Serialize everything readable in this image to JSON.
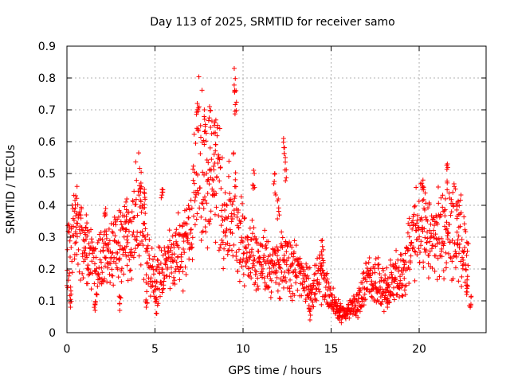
{
  "chart_data": {
    "type": "scatter",
    "title": "Day 113 of 2025, SRMTID for receiver samo",
    "xlabel": "GPS time / hours",
    "ylabel": "SRMTID / TECUs",
    "xlim": [
      0,
      23.8
    ],
    "ylim": [
      0,
      0.9
    ],
    "x_ticks": [
      0,
      5,
      10,
      15,
      20
    ],
    "x_tick_labels": [
      "0",
      "5",
      "10",
      "15",
      "20"
    ],
    "y_ticks": [
      0,
      0.1,
      0.2,
      0.3,
      0.4,
      0.5,
      0.6,
      0.7,
      0.8,
      0.9
    ],
    "y_tick_labels": [
      "0",
      "0.1",
      "0.2",
      "0.3",
      "0.4",
      "0.5",
      "0.6",
      "0.7",
      "0.8",
      "0.9"
    ],
    "grid": true,
    "marker": "+",
    "marker_color": "#ff0000",
    "series": [
      {
        "name": "SRMTID",
        "profile": [
          [
            0.0,
            0.22
          ],
          [
            0.3,
            0.28
          ],
          [
            0.5,
            0.35
          ],
          [
            0.7,
            0.3
          ],
          [
            1.0,
            0.25
          ],
          [
            1.5,
            0.22
          ],
          [
            2.0,
            0.22
          ],
          [
            2.5,
            0.25
          ],
          [
            3.0,
            0.27
          ],
          [
            3.5,
            0.28
          ],
          [
            3.8,
            0.33
          ],
          [
            4.0,
            0.38
          ],
          [
            4.3,
            0.36
          ],
          [
            4.6,
            0.2
          ],
          [
            5.0,
            0.17
          ],
          [
            5.5,
            0.2
          ],
          [
            6.0,
            0.23
          ],
          [
            6.5,
            0.27
          ],
          [
            7.0,
            0.32
          ],
          [
            7.3,
            0.5
          ],
          [
            7.6,
            0.55
          ],
          [
            8.0,
            0.42
          ],
          [
            8.5,
            0.5
          ],
          [
            9.0,
            0.35
          ],
          [
            9.5,
            0.4
          ],
          [
            10.0,
            0.27
          ],
          [
            10.5,
            0.25
          ],
          [
            11.0,
            0.22
          ],
          [
            11.5,
            0.21
          ],
          [
            12.0,
            0.2
          ],
          [
            12.5,
            0.24
          ],
          [
            13.0,
            0.2
          ],
          [
            13.5,
            0.15
          ],
          [
            14.0,
            0.14
          ],
          [
            14.5,
            0.18
          ],
          [
            15.0,
            0.11
          ],
          [
            15.5,
            0.06
          ],
          [
            16.0,
            0.07
          ],
          [
            16.5,
            0.09
          ],
          [
            17.0,
            0.16
          ],
          [
            17.5,
            0.17
          ],
          [
            18.0,
            0.14
          ],
          [
            18.5,
            0.16
          ],
          [
            19.0,
            0.18
          ],
          [
            19.3,
            0.22
          ],
          [
            19.6,
            0.3
          ],
          [
            20.0,
            0.35
          ],
          [
            20.5,
            0.28
          ],
          [
            21.0,
            0.3
          ],
          [
            21.5,
            0.32
          ],
          [
            22.0,
            0.33
          ],
          [
            22.5,
            0.28
          ],
          [
            22.8,
            0.22
          ]
        ],
        "spikes": [
          [
            4.2,
            0.47
          ],
          [
            4.4,
            0.45
          ],
          [
            5.4,
            0.45
          ],
          [
            7.4,
            0.72
          ],
          [
            7.8,
            0.7
          ],
          [
            8.1,
            0.71
          ],
          [
            8.4,
            0.66
          ],
          [
            9.5,
            0.83
          ],
          [
            9.6,
            0.76
          ],
          [
            10.6,
            0.51
          ],
          [
            11.8,
            0.5
          ],
          [
            12.0,
            0.42
          ],
          [
            12.3,
            0.61
          ],
          [
            12.4,
            0.55
          ],
          [
            20.2,
            0.46
          ],
          [
            21.6,
            0.53
          ],
          [
            22.2,
            0.41
          ],
          [
            0.5,
            0.43
          ],
          [
            1.1,
            0.37
          ],
          [
            2.2,
            0.39
          ],
          [
            3.4,
            0.42
          ],
          [
            14.5,
            0.29
          ]
        ],
        "dips": [
          [
            0.2,
            0.08
          ],
          [
            1.6,
            0.07
          ],
          [
            3.0,
            0.07
          ],
          [
            4.5,
            0.08
          ],
          [
            5.1,
            0.06
          ],
          [
            13.8,
            0.04
          ],
          [
            15.5,
            0.04
          ],
          [
            22.9,
            0.08
          ],
          [
            22.7,
            0.12
          ],
          [
            18.2,
            0.08
          ]
        ]
      }
    ]
  }
}
